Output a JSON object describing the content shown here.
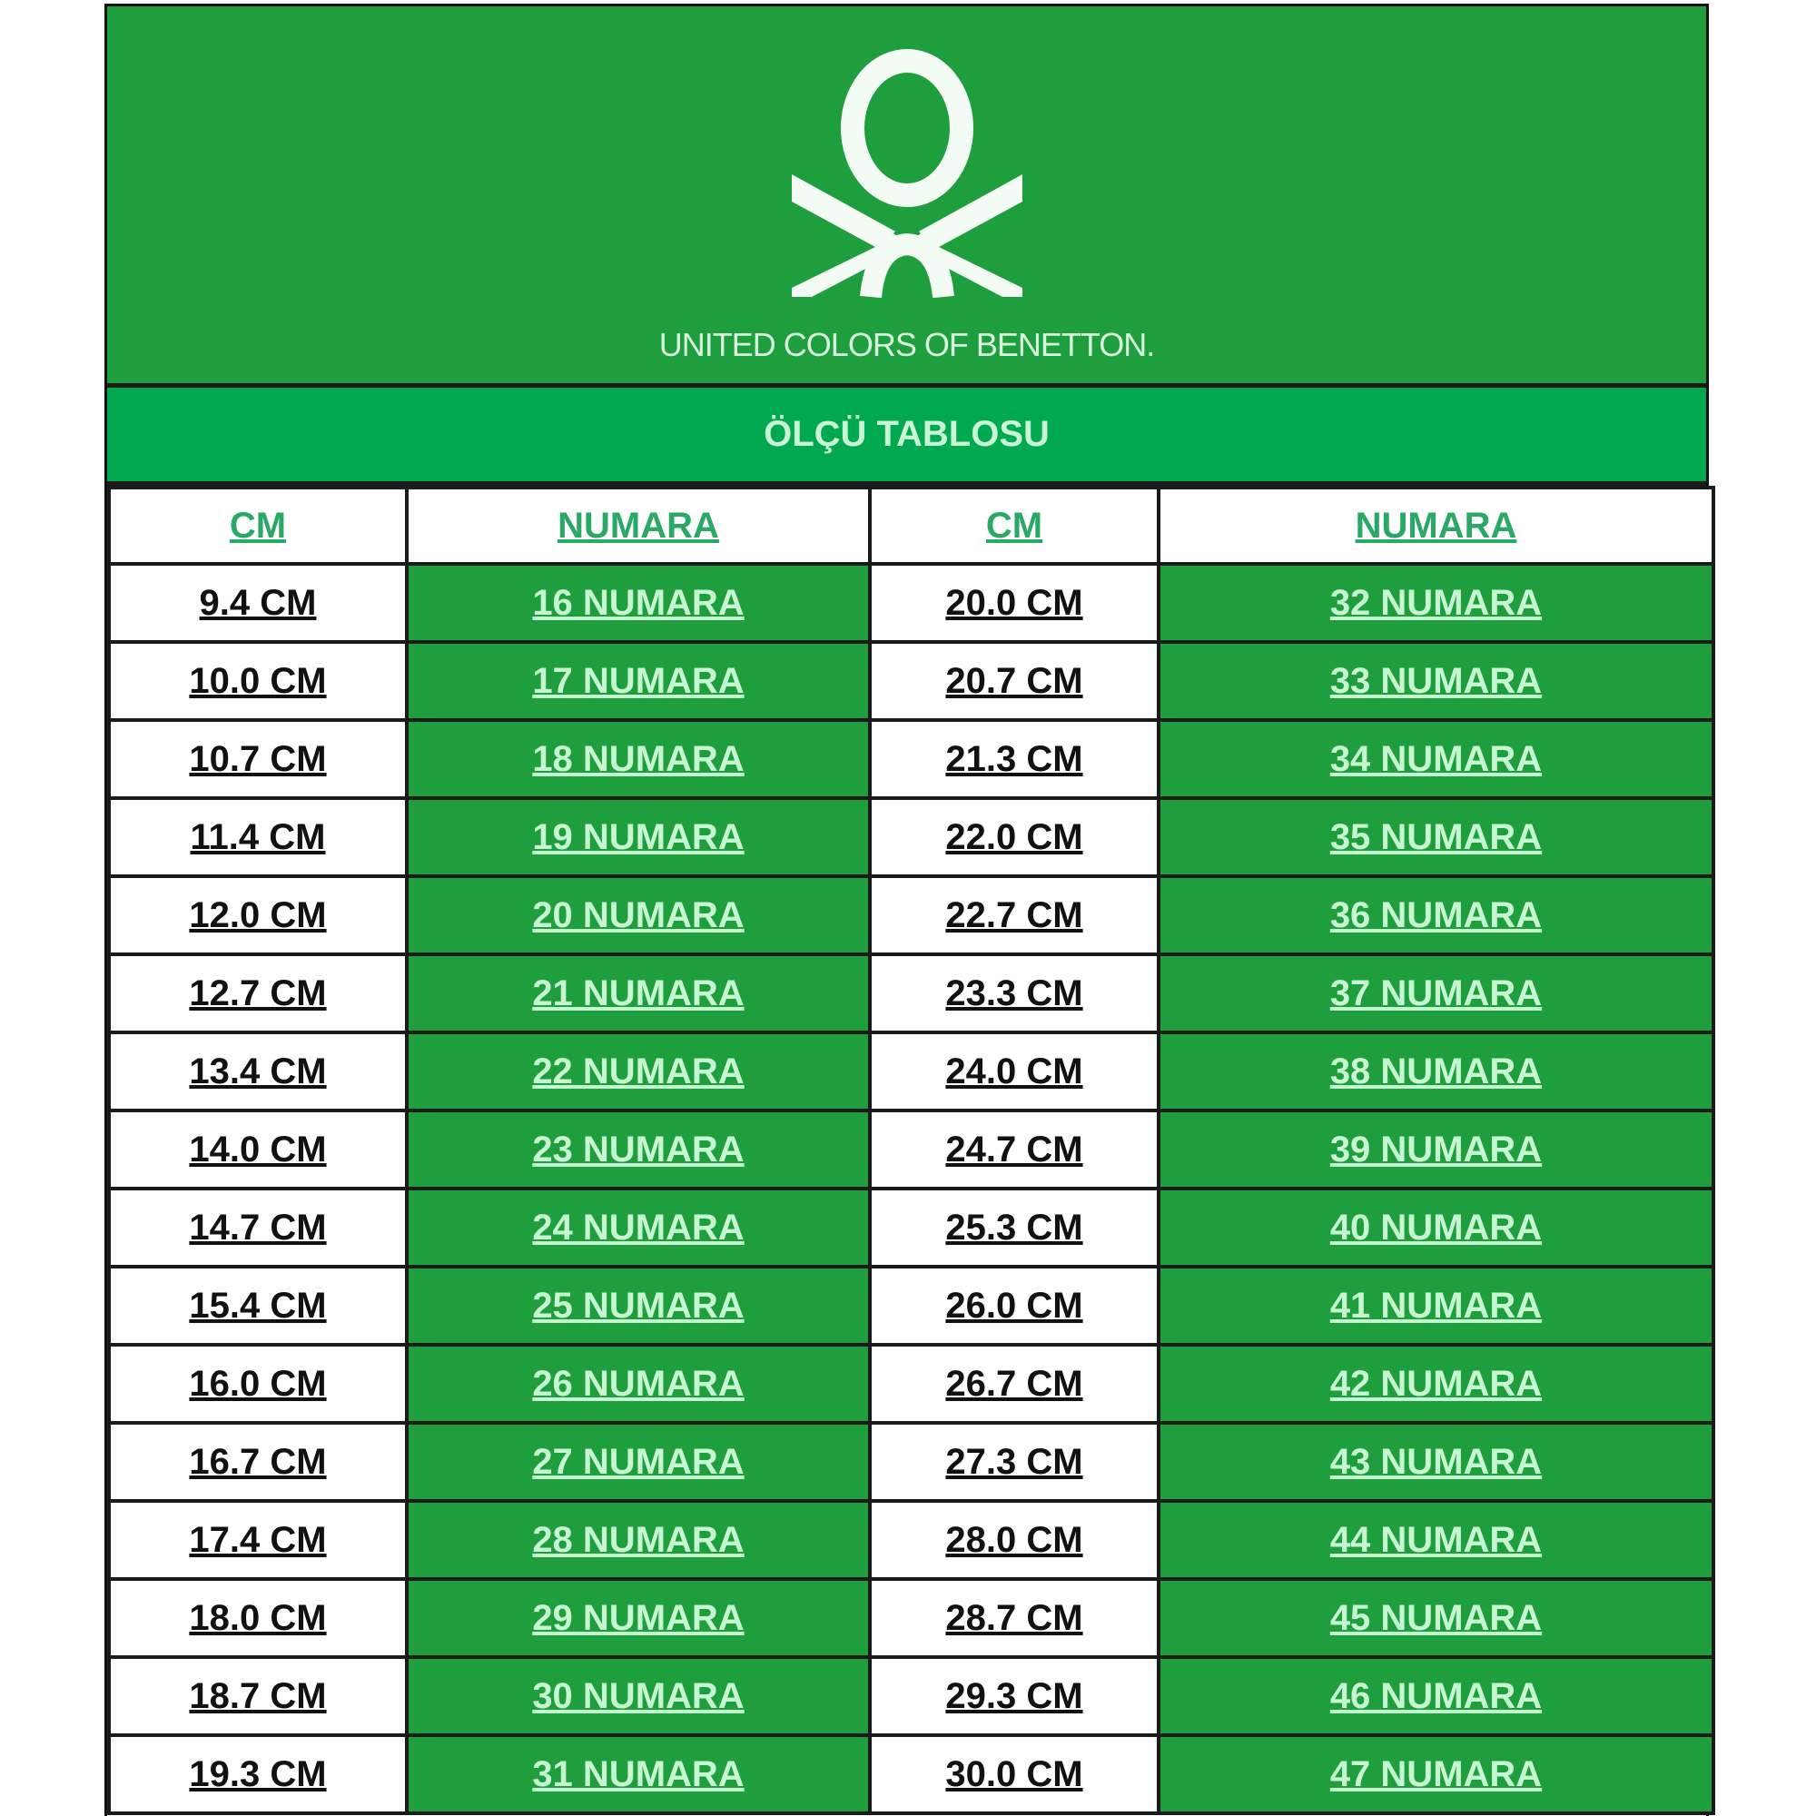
{
  "brand": {
    "name": "UNITED COLORS OF BENETTON.",
    "logo_icon": "benetton-knot-logo",
    "colors": {
      "green": "#1f9e3e",
      "title_green": "#00a84f",
      "light_text": "#c6f7d2"
    }
  },
  "title": "ÖLÇÜ TABLOSU",
  "headers": [
    "CM",
    "NUMARA",
    "CM",
    "NUMARA"
  ],
  "rows": [
    [
      "9.4 CM",
      "16 NUMARA",
      "20.0 CM",
      "32 NUMARA"
    ],
    [
      "10.0 CM",
      "17 NUMARA",
      "20.7 CM",
      "33 NUMARA"
    ],
    [
      "10.7 CM",
      "18 NUMARA",
      "21.3 CM",
      "34 NUMARA"
    ],
    [
      "11.4 CM",
      "19 NUMARA",
      "22.0 CM",
      "35 NUMARA"
    ],
    [
      "12.0 CM",
      "20 NUMARA",
      "22.7 CM",
      "36 NUMARA"
    ],
    [
      "12.7 CM",
      "21 NUMARA",
      "23.3 CM",
      "37 NUMARA"
    ],
    [
      "13.4 CM",
      "22 NUMARA",
      "24.0 CM",
      "38 NUMARA"
    ],
    [
      "14.0 CM",
      "23 NUMARA",
      "24.7 CM",
      "39 NUMARA"
    ],
    [
      "14.7 CM",
      "24 NUMARA",
      "25.3 CM",
      "40 NUMARA"
    ],
    [
      "15.4 CM",
      "25 NUMARA",
      "26.0 CM",
      "41 NUMARA"
    ],
    [
      "16.0 CM",
      "26 NUMARA",
      "26.7 CM",
      "42 NUMARA"
    ],
    [
      "16.7 CM",
      "27 NUMARA",
      "27.3 CM",
      "43 NUMARA"
    ],
    [
      "17.4 CM",
      "28 NUMARA",
      "28.0 CM",
      "44 NUMARA"
    ],
    [
      "18.0 CM",
      "29 NUMARA",
      "28.7 CM",
      "45 NUMARA"
    ],
    [
      "18.7 CM",
      "30 NUMARA",
      "29.3 CM",
      "46 NUMARA"
    ],
    [
      "19.3 CM",
      "31 NUMARA",
      "30.0 CM",
      "47 NUMARA"
    ]
  ]
}
